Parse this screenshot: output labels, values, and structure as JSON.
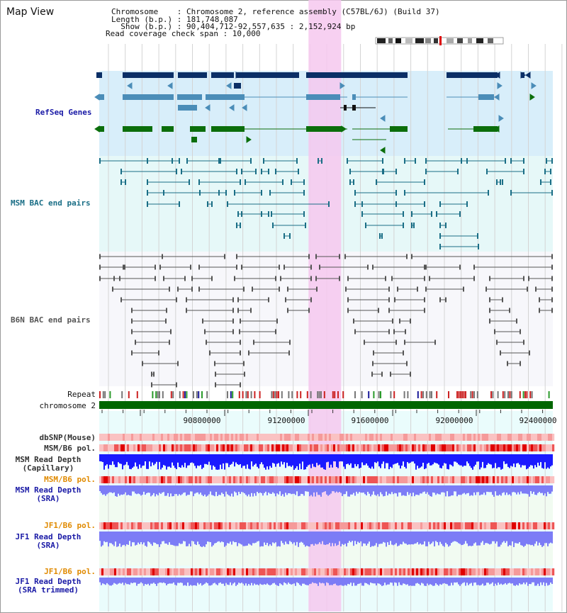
{
  "title": "Map View",
  "info": {
    "chromosome": "Chromosome    : Chromosome 2, reference assembly (C57BL/6J) (Build 37)",
    "length": "Length (b.p.) : 181,748,087",
    "show": "  Show (b.p.) : 90,404,712-92,557,635 : 2,152,924 bp",
    "span": "Read coverage check span : 10,000"
  },
  "tracks": {
    "refseq": "RefSeq Genes",
    "msm_bac": "MSM BAC end pairs",
    "b6n_bac": "B6N BAC end pairs",
    "repeat": "Repeat",
    "chromosome": "chromosome 2",
    "dbsnp": "dbSNP(Mouse)",
    "msm_b6_pol_1": "MSM/B6 pol.",
    "msm_read_depth_cap": "MSM Read Depth\n(Capillary)",
    "msm_b6_pol_2": "MSM/B6 pol.",
    "msm_read_depth_sra": "MSM Read Depth\n(SRA)",
    "jf1_b6_pol_1": "JF1/B6 pol.",
    "jf1_read_depth_sra": "JF1 Read Depth\n(SRA)",
    "jf1_b6_pol_2": "JF1/B6 pol.",
    "jf1_read_depth_trim": "JF1 Read Depth\n(SRA trimmed)"
  },
  "axis": {
    "ticks": [
      "90800000",
      "91200000",
      "91600000",
      "92000000",
      "92400000"
    ]
  },
  "colors": {
    "refseq_dark": "#0b2f66",
    "refseq_mid": "#4b8db8",
    "refseq_green": "#0b6e0b",
    "msm_bac": "#1a6e86",
    "b6n_bac": "#555555",
    "highlight": "#f6c8ee",
    "chromosome_bar": "#006600",
    "depth_blue": "#1a1aff",
    "depth_light": "#7c7cf6"
  },
  "view": {
    "start_bp": 90404712,
    "end_bp": 92557635,
    "highlight_start_bp": 91398000,
    "highlight_end_bp": 91553000
  }
}
